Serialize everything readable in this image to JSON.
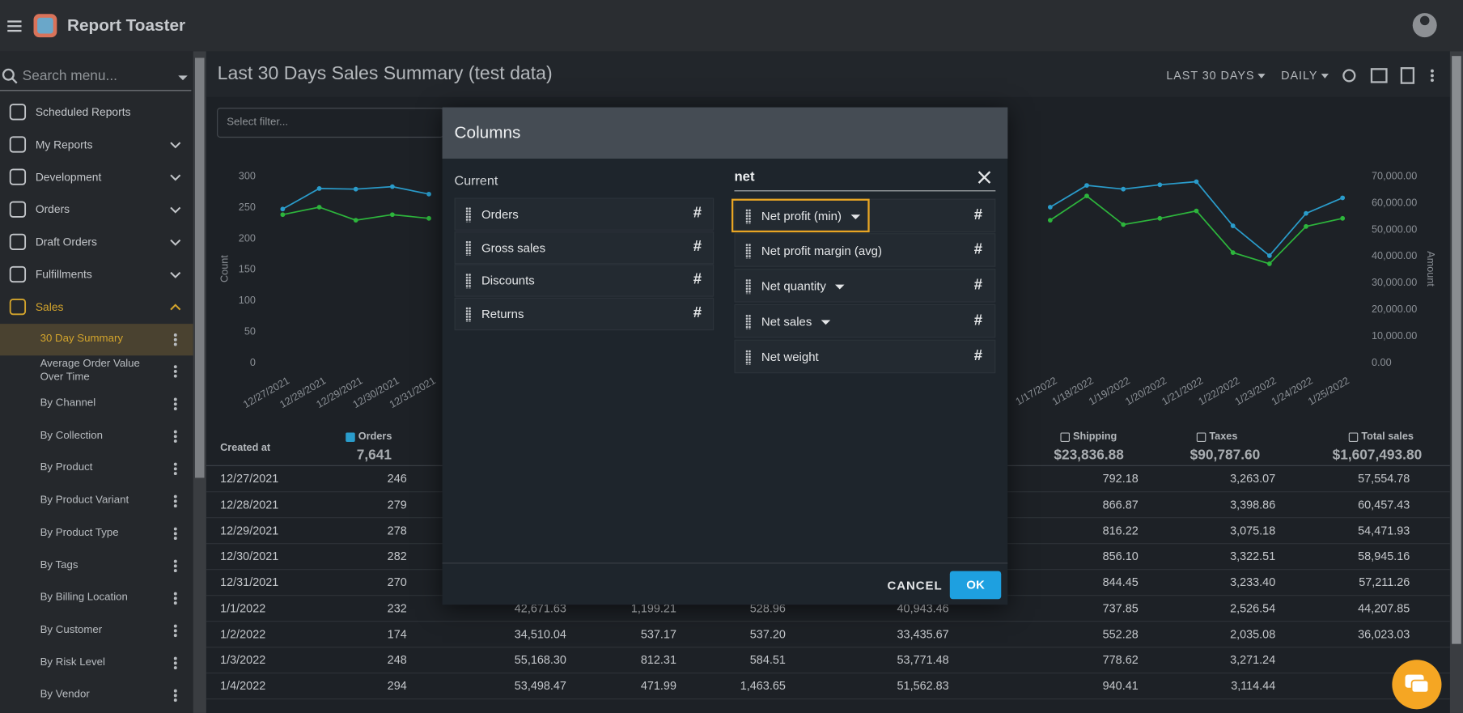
{
  "app": {
    "name": "Report Toaster"
  },
  "sidebar": {
    "search_placeholder": "Search menu...",
    "items": [
      "Scheduled Reports",
      "My Reports",
      "Development",
      "Orders",
      "Draft Orders",
      "Fulfillments",
      "Sales"
    ],
    "sub_items": [
      "30 Day Summary",
      "Average Order Value Over Time",
      "By Channel",
      "By Collection",
      "By Product",
      "By Product Variant",
      "By Product Type",
      "By Tags",
      "By Billing Location",
      "By Customer",
      "By Risk Level",
      "By Vendor"
    ]
  },
  "report": {
    "title": "Last 30 Days Sales Summary (test data)",
    "range": "LAST 30 DAYS",
    "interval": "DAILY",
    "filter_placeholder": "Select filter..."
  },
  "chart": {
    "type": "line",
    "ylabel": "Count",
    "y2label": "Amount",
    "x": [
      "12/27/2021",
      "12/28/2021",
      "12/29/2021",
      "12/30/2021",
      "12/31/2021",
      null,
      null,
      null,
      null,
      null,
      null,
      null,
      null,
      null,
      null,
      null,
      null,
      null,
      null,
      null,
      null,
      "1/17/2022",
      "1/18/2022",
      "1/19/2022",
      "1/20/2022",
      "1/21/2022",
      "1/22/2022",
      "1/23/2022",
      "1/24/2022",
      "1/25/2022"
    ],
    "series": [
      {
        "color": "#2a9ccb",
        "values": [
          246,
          279,
          278,
          282,
          270,
          null,
          null,
          null,
          null,
          null,
          null,
          null,
          null,
          null,
          null,
          null,
          null,
          null,
          null,
          null,
          null,
          249,
          284,
          278,
          285,
          290,
          219,
          171,
          239,
          264
        ]
      },
      {
        "color": "#2db53c",
        "values": [
          237,
          249,
          228,
          237,
          231,
          null,
          null,
          null,
          null,
          null,
          null,
          null,
          null,
          null,
          null,
          null,
          null,
          null,
          null,
          null,
          null,
          228,
          267,
          221,
          231,
          243,
          176,
          158,
          218,
          231
        ]
      }
    ],
    "ylim": [
      0,
      300
    ],
    "yticks": [
      0,
      50,
      100,
      150,
      200,
      250,
      300
    ],
    "y2lim": [
      0,
      70000
    ],
    "y2ticks": [
      {
        "value": 0,
        "label": "0.00"
      },
      {
        "value": 10000,
        "label": "10,000.00"
      },
      {
        "value": 20000,
        "label": "20,000.00"
      },
      {
        "value": 30000,
        "label": "30,000.00"
      },
      {
        "value": 40000,
        "label": "40,000.00"
      },
      {
        "value": 50000,
        "label": "50,000.00"
      },
      {
        "value": 60000,
        "label": "60,000.00"
      },
      {
        "value": 70000,
        "label": "70,000.00"
      }
    ]
  },
  "table": {
    "columns": [
      {
        "label": "Created at"
      },
      {
        "label": "Orders",
        "total": "7,641"
      },
      null,
      null,
      null,
      null,
      {
        "label": "Shipping",
        "total": "$23,836.88"
      },
      {
        "label": "Taxes",
        "total": "$90,787.60"
      },
      {
        "label": "Total sales",
        "total": "$1,607,493.80"
      }
    ],
    "rows": [
      [
        "12/27/2021",
        "246",
        null,
        null,
        null,
        null,
        "792.18",
        "3,263.07",
        "57,554.78"
      ],
      [
        "12/28/2021",
        "279",
        null,
        null,
        null,
        null,
        "866.87",
        "3,398.86",
        "60,457.43"
      ],
      [
        "12/29/2021",
        "278",
        null,
        null,
        null,
        null,
        "816.22",
        "3,075.18",
        "54,471.93"
      ],
      [
        "12/30/2021",
        "282",
        null,
        null,
        null,
        null,
        "856.10",
        "3,322.51",
        "58,945.16"
      ],
      [
        "12/31/2021",
        "270",
        null,
        null,
        null,
        null,
        "844.45",
        "3,233.40",
        "57,211.26"
      ],
      [
        "1/1/2022",
        "232",
        "42,671.63",
        "1,199.21",
        "528.96",
        "40,943.46",
        "737.85",
        "2,526.54",
        "44,207.85"
      ],
      [
        "1/2/2022",
        "174",
        "34,510.04",
        "537.17",
        "537.20",
        "33,435.67",
        "552.28",
        "2,035.08",
        "36,023.03"
      ],
      [
        "1/3/2022",
        "248",
        "55,168.30",
        "812.31",
        "584.51",
        "53,771.48",
        "778.62",
        "3,271.24",
        null
      ],
      [
        "1/4/2022",
        "294",
        "53,498.47",
        "471.99",
        "1,463.65",
        "51,562.83",
        "940.41",
        "3,114.44",
        null
      ]
    ]
  },
  "dialog": {
    "title": "Columns",
    "current_heading": "Current",
    "type_icon": "#",
    "current": [
      "Orders",
      "Gross sales",
      "Discounts",
      "Returns"
    ],
    "search": "net",
    "results": [
      "Net profit (min)",
      "Net profit margin (avg)",
      "Net quantity",
      "Net sales",
      "Net weight"
    ],
    "cancel": "CANCEL",
    "ok": "OK"
  }
}
